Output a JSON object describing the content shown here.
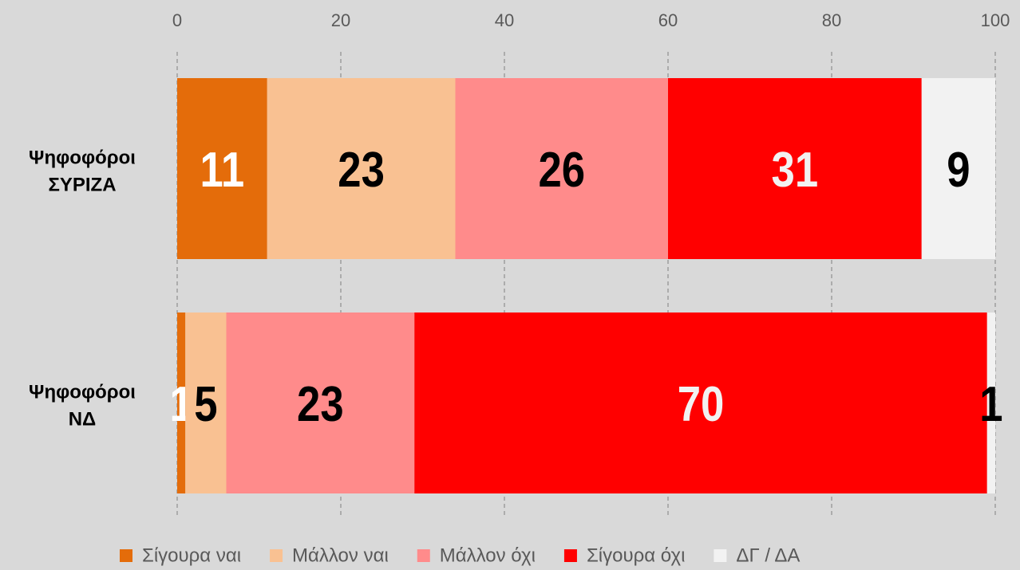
{
  "chart_data": {
    "type": "stacked-bar-horizontal",
    "categories": [
      "Ψηφοφόροι ΣΥΡΙΖΑ",
      "Ψηφοφόροι ΝΔ"
    ],
    "series": [
      {
        "name": "Σίγουρα ναι",
        "color": "#e46c0a",
        "values": [
          11,
          1
        ]
      },
      {
        "name": "Μάλλον ναι",
        "color": "#f9c192",
        "values": [
          23,
          5
        ]
      },
      {
        "name": "Μάλλον όχι",
        "color": "#ff8b8b",
        "values": [
          26,
          23
        ]
      },
      {
        "name": "Σίγουρα όχι",
        "color": "#ff0000",
        "values": [
          31,
          70
        ]
      },
      {
        "name": "ΔΓ / ΔΑ",
        "color": "#f2f2f2",
        "values": [
          9,
          1
        ]
      }
    ],
    "xlim": [
      0,
      100
    ],
    "xticks": [
      0,
      20,
      40,
      60,
      80,
      100
    ],
    "grid": true,
    "legend": "bottom"
  }
}
